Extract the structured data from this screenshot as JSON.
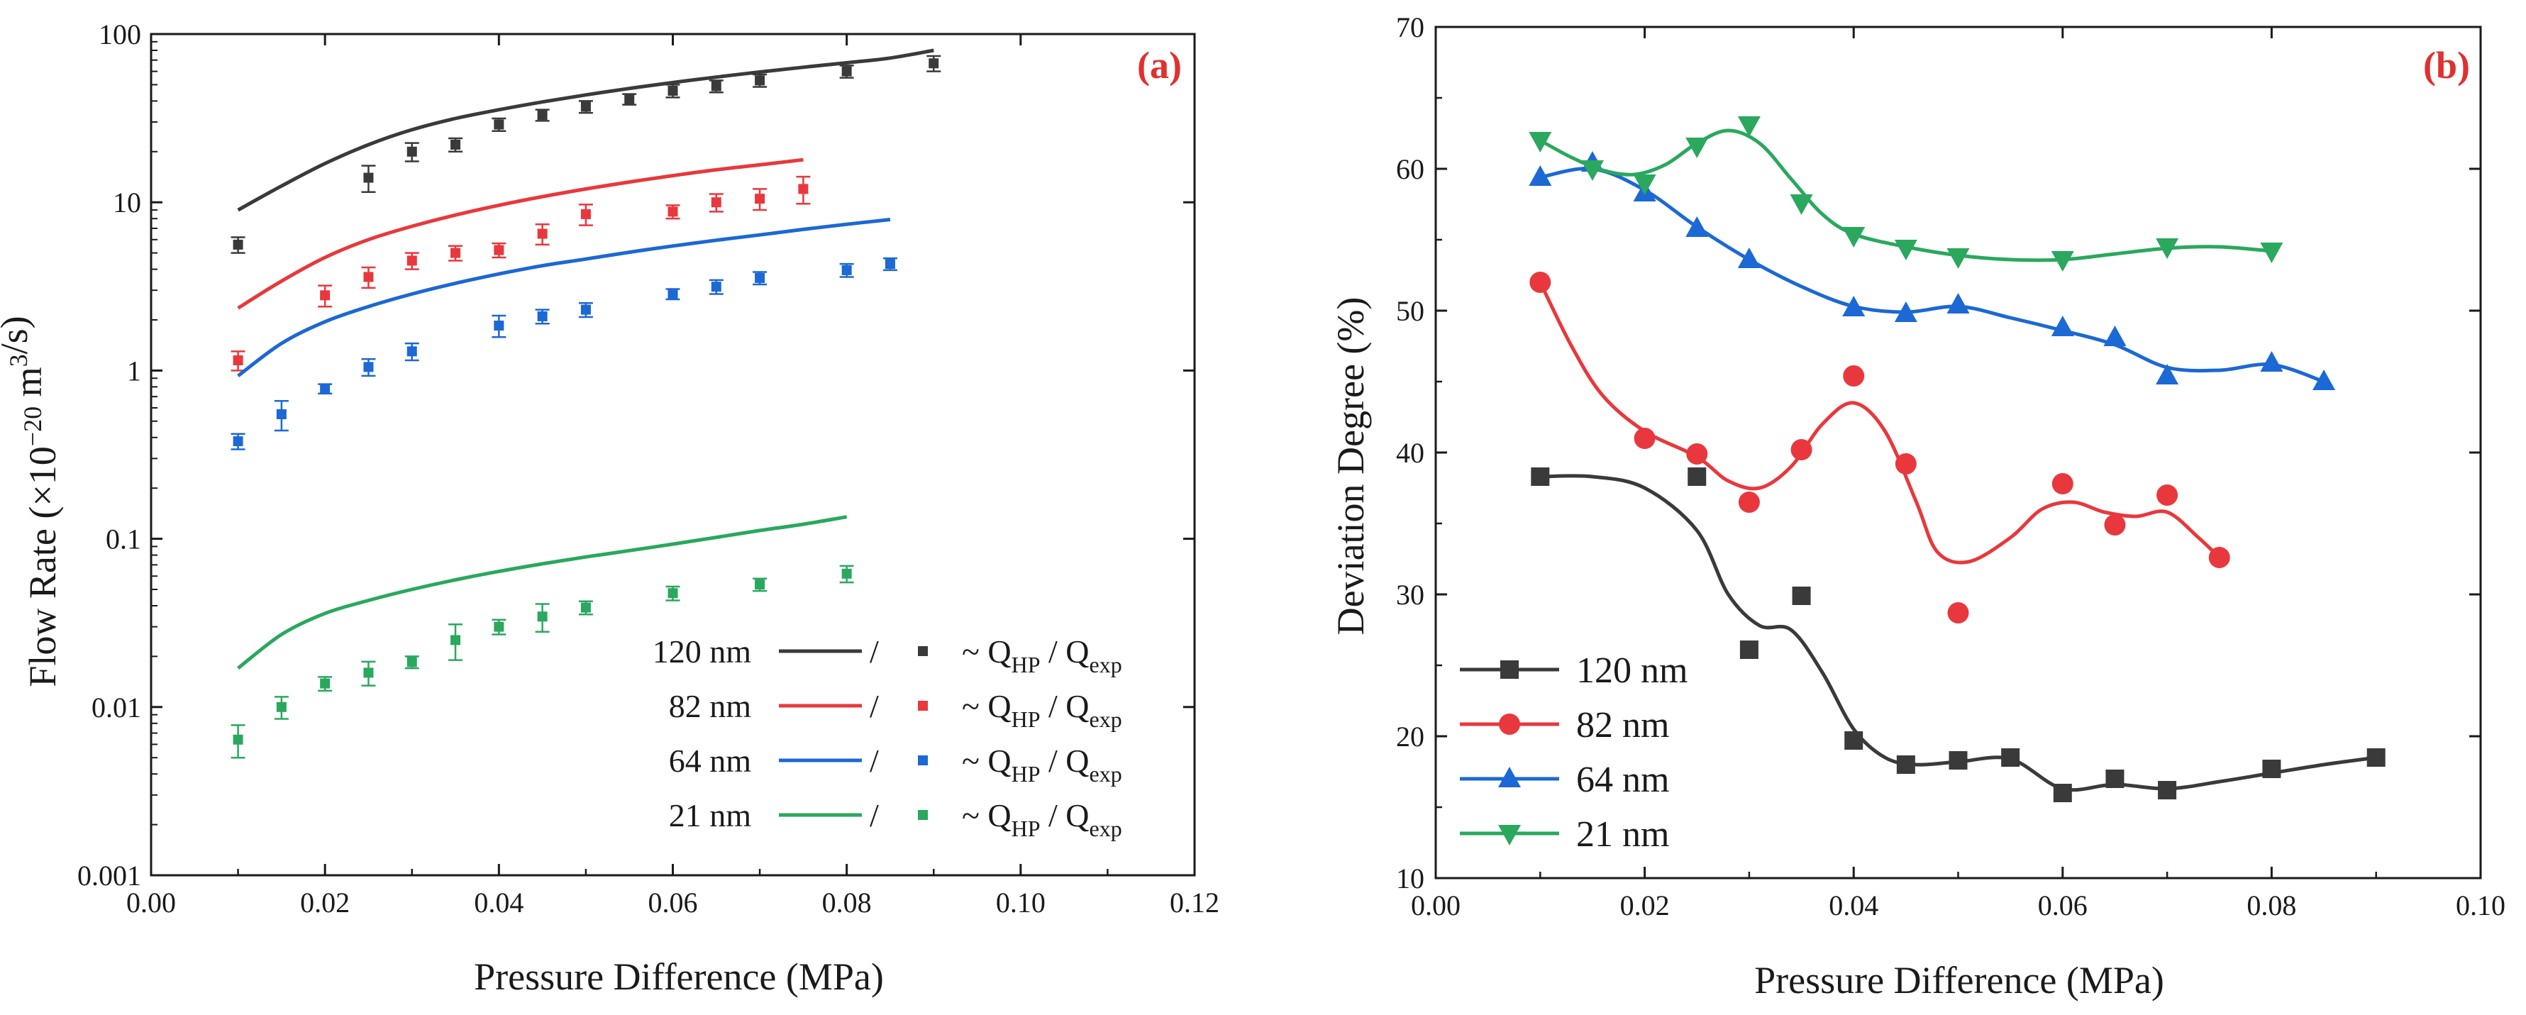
{
  "chart_data": [
    {
      "type": "scatter",
      "panel_label": "(a)",
      "xlabel": "Pressure Difference (MPa)",
      "ylabel_parts": [
        "Flow Rate (×10",
        "−20",
        " m",
        "3",
        "/s)"
      ],
      "xlim": [
        0.0,
        0.12
      ],
      "ylim": [
        0.001,
        100
      ],
      "yscale": "log",
      "x_ticks": [
        0.0,
        0.02,
        0.04,
        0.06,
        0.08,
        0.1,
        0.12
      ],
      "x_tick_labels": [
        "0.00",
        "0.02",
        "0.04",
        "0.06",
        "0.08",
        "0.10",
        "0.12"
      ],
      "y_ticks": [
        0.001,
        0.01,
        0.1,
        1,
        10,
        100
      ],
      "y_tick_labels": [
        "0.001",
        "0.01",
        "0.1",
        "1",
        "10",
        "100"
      ],
      "legend_slash": "/",
      "legend_tail_parts": [
        "~ Q",
        "HP",
        " / Q",
        "exp"
      ],
      "series": [
        {
          "name": "120 nm",
          "color": "#3a3a3a",
          "line_x": [
            0.01,
            0.015,
            0.02,
            0.025,
            0.03,
            0.035,
            0.04,
            0.045,
            0.05,
            0.055,
            0.06,
            0.065,
            0.07,
            0.075,
            0.08,
            0.085,
            0.09
          ],
          "line_y": [
            9.0,
            12.5,
            17.0,
            22.0,
            27.0,
            31.5,
            35.5,
            39.5,
            43.5,
            47.5,
            51.5,
            55.5,
            59.5,
            63.5,
            67.5,
            72.0,
            80.0
          ],
          "points_x": [
            0.01,
            0.025,
            0.03,
            0.035,
            0.04,
            0.045,
            0.05,
            0.055,
            0.06,
            0.065,
            0.07,
            0.08,
            0.09
          ],
          "points_y": [
            5.6,
            14.0,
            20.0,
            22.0,
            29.0,
            33.0,
            37.0,
            41.0,
            46.0,
            49.0,
            53.0,
            60.0,
            67.0
          ],
          "err": [
            0.6,
            2.5,
            2.5,
            2.0,
            2.5,
            2.5,
            3.0,
            3.0,
            4.0,
            4.0,
            4.5,
            5.0,
            7.0
          ]
        },
        {
          "name": "82 nm",
          "color": "#e8383d",
          "line_x": [
            0.01,
            0.015,
            0.02,
            0.025,
            0.03,
            0.035,
            0.04,
            0.045,
            0.05,
            0.055,
            0.06,
            0.065,
            0.07,
            0.075
          ],
          "line_y": [
            2.35,
            3.4,
            4.7,
            6.0,
            7.2,
            8.4,
            9.6,
            10.8,
            12.0,
            13.2,
            14.4,
            15.6,
            16.7,
            17.9
          ],
          "points_x": [
            0.01,
            0.02,
            0.025,
            0.03,
            0.035,
            0.04,
            0.045,
            0.05,
            0.06,
            0.065,
            0.07,
            0.075
          ],
          "points_y": [
            1.15,
            2.8,
            3.6,
            4.5,
            5.0,
            5.2,
            6.5,
            8.5,
            8.8,
            10.0,
            10.5,
            12.0
          ],
          "err": [
            0.15,
            0.4,
            0.5,
            0.5,
            0.5,
            0.5,
            0.9,
            1.2,
            0.8,
            1.2,
            1.5,
            2.2
          ]
        },
        {
          "name": "64 nm",
          "color": "#1c68d4",
          "line_x": [
            0.01,
            0.015,
            0.02,
            0.025,
            0.03,
            0.035,
            0.04,
            0.045,
            0.05,
            0.055,
            0.06,
            0.065,
            0.07,
            0.075,
            0.08,
            0.085
          ],
          "line_y": [
            0.93,
            1.45,
            1.95,
            2.4,
            2.85,
            3.3,
            3.75,
            4.2,
            4.6,
            5.05,
            5.5,
            5.95,
            6.4,
            6.9,
            7.4,
            7.9
          ],
          "points_x": [
            0.01,
            0.015,
            0.02,
            0.025,
            0.03,
            0.04,
            0.045,
            0.05,
            0.06,
            0.065,
            0.07,
            0.08,
            0.085
          ],
          "points_y": [
            0.38,
            0.55,
            0.78,
            1.05,
            1.3,
            1.85,
            2.1,
            2.3,
            2.85,
            3.15,
            3.55,
            3.95,
            4.3
          ],
          "err": [
            0.04,
            0.11,
            0.05,
            0.12,
            0.15,
            0.27,
            0.2,
            0.22,
            0.2,
            0.3,
            0.3,
            0.35,
            0.35
          ]
        },
        {
          "name": "21 nm",
          "color": "#2aa85e",
          "line_x": [
            0.01,
            0.015,
            0.02,
            0.025,
            0.03,
            0.035,
            0.04,
            0.045,
            0.05,
            0.055,
            0.06,
            0.065,
            0.07,
            0.075,
            0.08
          ],
          "line_y": [
            0.017,
            0.027,
            0.036,
            0.043,
            0.05,
            0.057,
            0.064,
            0.071,
            0.078,
            0.085,
            0.093,
            0.102,
            0.112,
            0.122,
            0.135
          ],
          "points_x": [
            0.01,
            0.015,
            0.02,
            0.025,
            0.03,
            0.035,
            0.04,
            0.045,
            0.05,
            0.06,
            0.07,
            0.08
          ],
          "points_y": [
            0.0064,
            0.01,
            0.0138,
            0.016,
            0.0185,
            0.025,
            0.03,
            0.0345,
            0.039,
            0.0475,
            0.0535,
            0.062
          ],
          "err": [
            0.0014,
            0.0015,
            0.0013,
            0.0026,
            0.0015,
            0.006,
            0.003,
            0.0065,
            0.0035,
            0.0045,
            0.0045,
            0.007
          ]
        }
      ]
    },
    {
      "type": "line",
      "panel_label": "(b)",
      "xlabel": "Pressure Difference (MPa)",
      "ylabel": "Deviation Degree (%)",
      "xlim": [
        0.0,
        0.1
      ],
      "ylim": [
        10,
        70
      ],
      "x_ticks": [
        0.0,
        0.02,
        0.04,
        0.06,
        0.08,
        0.1
      ],
      "x_tick_labels": [
        "0.00",
        "0.02",
        "0.04",
        "0.06",
        "0.08",
        "0.10"
      ],
      "y_ticks": [
        10,
        20,
        30,
        40,
        50,
        60,
        70
      ],
      "y_tick_labels": [
        "10",
        "20",
        "30",
        "40",
        "50",
        "60",
        "70"
      ],
      "series": [
        {
          "name": "120 nm",
          "color": "#3a3a3a",
          "marker": "square",
          "x": [
            0.01,
            0.025,
            0.03,
            0.035,
            0.04,
            0.045,
            0.05,
            0.055,
            0.06,
            0.065,
            0.07,
            0.08,
            0.09
          ],
          "y": [
            38.3,
            38.3,
            26.1,
            29.9,
            19.7,
            18.0,
            18.3,
            18.5,
            16.0,
            17.0,
            16.2,
            17.7,
            18.5
          ],
          "curve_x": [
            0.01,
            0.015,
            0.02,
            0.025,
            0.028,
            0.031,
            0.034,
            0.037,
            0.04,
            0.043,
            0.046,
            0.05,
            0.055,
            0.06,
            0.065,
            0.07,
            0.075,
            0.08,
            0.085,
            0.09
          ],
          "curve_y": [
            38.3,
            38.3,
            37.5,
            34.5,
            30.0,
            27.8,
            27.5,
            24.5,
            20.5,
            18.5,
            18.0,
            18.2,
            18.4,
            16.3,
            16.6,
            16.3,
            16.8,
            17.4,
            18.0,
            18.5
          ]
        },
        {
          "name": "82 nm",
          "color": "#e8383d",
          "marker": "circle",
          "x": [
            0.01,
            0.02,
            0.025,
            0.03,
            0.035,
            0.04,
            0.045,
            0.05,
            0.06,
            0.065,
            0.07,
            0.075
          ],
          "y": [
            52.0,
            41.0,
            39.9,
            36.5,
            40.2,
            45.4,
            39.2,
            28.7,
            37.8,
            34.9,
            37.0,
            32.6
          ],
          "curve_x": [
            0.01,
            0.013,
            0.016,
            0.02,
            0.025,
            0.028,
            0.031,
            0.034,
            0.037,
            0.04,
            0.043,
            0.046,
            0.048,
            0.051,
            0.055,
            0.058,
            0.061,
            0.064,
            0.067,
            0.07,
            0.073,
            0.075
          ],
          "curve_y": [
            52.0,
            47.5,
            44.0,
            41.5,
            39.7,
            38.0,
            37.5,
            39.0,
            42.0,
            43.5,
            41.5,
            36.5,
            33.0,
            32.3,
            34.0,
            36.0,
            36.5,
            35.8,
            35.5,
            35.8,
            34.0,
            32.6
          ]
        },
        {
          "name": "64 nm",
          "color": "#1c68d4",
          "marker": "triangle-up",
          "x": [
            0.01,
            0.015,
            0.02,
            0.025,
            0.03,
            0.04,
            0.045,
            0.05,
            0.06,
            0.065,
            0.07,
            0.08,
            0.085
          ],
          "y": [
            59.4,
            60.4,
            58.3,
            55.8,
            53.6,
            50.2,
            49.8,
            50.4,
            48.8,
            48.1,
            45.4,
            46.3,
            45.0
          ],
          "curve_x": [
            0.01,
            0.015,
            0.02,
            0.025,
            0.03,
            0.035,
            0.04,
            0.045,
            0.05,
            0.055,
            0.06,
            0.065,
            0.07,
            0.075,
            0.08,
            0.085
          ],
          "curve_y": [
            59.4,
            60.0,
            58.5,
            55.9,
            53.6,
            51.7,
            50.3,
            49.9,
            50.3,
            49.5,
            48.6,
            47.6,
            46.0,
            45.8,
            46.2,
            45.0
          ]
        },
        {
          "name": "21 nm",
          "color": "#2aa85e",
          "marker": "triangle-down",
          "x": [
            0.01,
            0.015,
            0.02,
            0.025,
            0.03,
            0.035,
            0.04,
            0.045,
            0.05,
            0.06,
            0.07,
            0.08
          ],
          "y": [
            62.0,
            60.0,
            59.0,
            61.6,
            63.1,
            57.6,
            55.3,
            54.4,
            53.8,
            53.6,
            54.5,
            54.2
          ],
          "curve_x": [
            0.01,
            0.013,
            0.016,
            0.019,
            0.022,
            0.025,
            0.028,
            0.031,
            0.034,
            0.037,
            0.04,
            0.045,
            0.05,
            0.055,
            0.06,
            0.065,
            0.07,
            0.075,
            0.08
          ],
          "curve_y": [
            62.0,
            60.8,
            59.9,
            59.6,
            60.3,
            61.8,
            62.7,
            61.8,
            59.3,
            56.8,
            55.4,
            54.5,
            53.9,
            53.6,
            53.6,
            54.0,
            54.4,
            54.5,
            54.2
          ]
        }
      ]
    }
  ]
}
